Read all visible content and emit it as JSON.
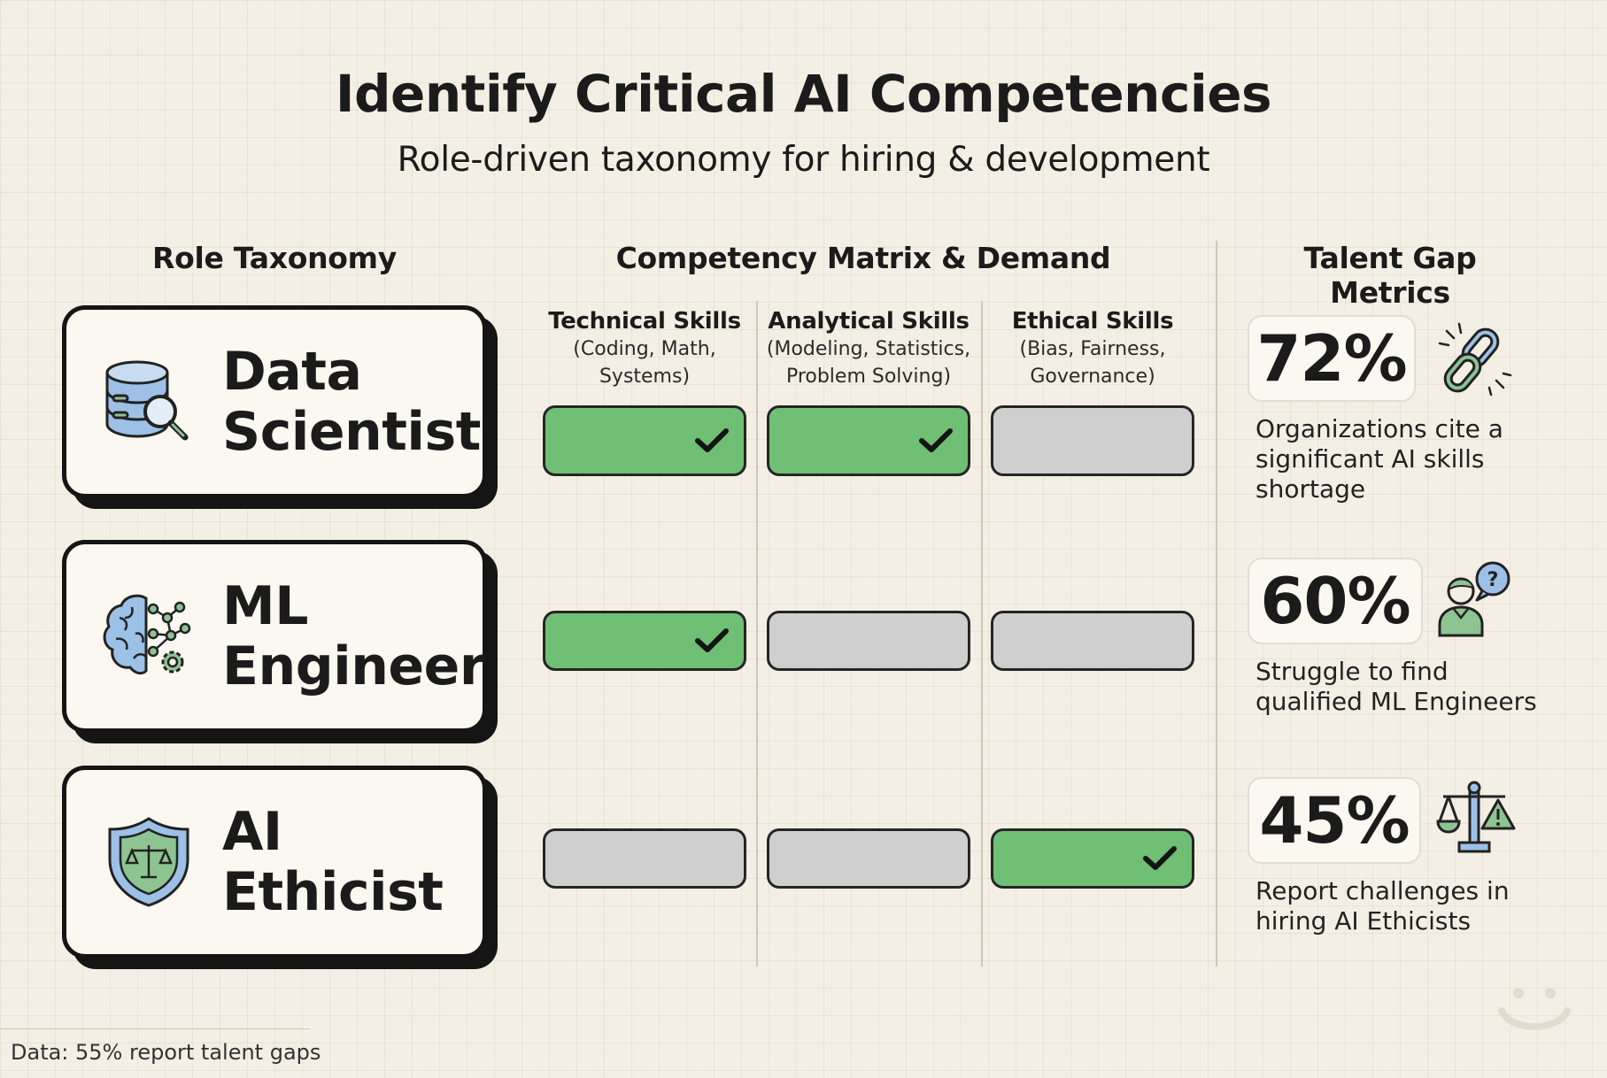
{
  "title": "Identify Critical AI Competencies",
  "subtitle": "Role-driven taxonomy for hiring & development",
  "sections": {
    "roles": "Role Taxonomy",
    "matrix": "Competency Matrix & Demand",
    "metrics": "Talent Gap Metrics"
  },
  "skills": [
    {
      "title": "Technical Skills",
      "line1": "(Coding, Math,",
      "line2": "Systems)"
    },
    {
      "title": "Analytical Skills",
      "line1": "(Modeling, Statistics,",
      "line2": "Problem Solving)"
    },
    {
      "title": "Ethical Skills",
      "line1": "(Bias, Fairness,",
      "line2": "Governance)"
    }
  ],
  "roles": [
    {
      "line1": "Data",
      "line2": "Scientist",
      "icon": "database-search-icon",
      "skills": [
        true,
        true,
        false
      ]
    },
    {
      "line1": "ML",
      "line2": "Engineer",
      "icon": "brain-network-icon",
      "skills": [
        true,
        false,
        false
      ]
    },
    {
      "line1": "AI",
      "line2": "Ethicist",
      "icon": "shield-scales-icon",
      "skills": [
        false,
        false,
        true
      ]
    }
  ],
  "metrics": [
    {
      "value": "72%",
      "line1": "Organizations cite a",
      "line2": "significant AI skills",
      "line3": "shortage",
      "icon": "broken-chain-icon"
    },
    {
      "value": "60%",
      "line1": "Struggle to find",
      "line2": "qualified ML Engineers",
      "icon": "person-question-icon"
    },
    {
      "value": "45%",
      "line1": "Report challenges in",
      "line2": "hiring AI Ethicists",
      "icon": "scales-warning-icon"
    }
  ],
  "footnote": "Data: 55% report talent gaps",
  "colors": {
    "accent_green": "#6fbf75",
    "inactive_gray": "#cfcfcf",
    "icon_blue": "#9dc0e6",
    "background": "#f4efe4"
  }
}
